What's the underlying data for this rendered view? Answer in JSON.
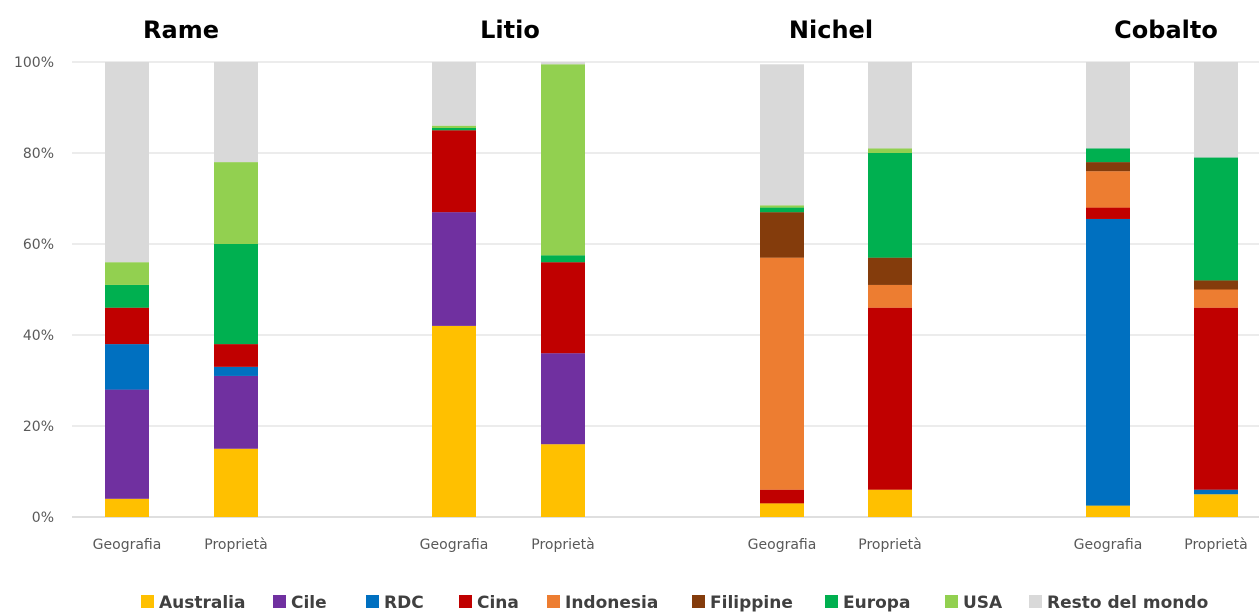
{
  "chart_data": {
    "type": "bar",
    "stacked": true,
    "ylim": [
      0,
      100
    ],
    "yticks": [
      "0%",
      "20%",
      "40%",
      "60%",
      "80%",
      "100%"
    ],
    "grid": true,
    "legend_position": "bottom",
    "series_names": [
      "Australia",
      "Cile",
      "RDC",
      "Cina",
      "Indonesia",
      "Filippine",
      "Europa",
      "USA",
      "Resto del mondo"
    ],
    "colors": {
      "Australia": "#FFC000",
      "Cile": "#7030A0",
      "RDC": "#0070C0",
      "Cina": "#C00000",
      "Indonesia": "#ED7D31",
      "Filippine": "#843C0C",
      "Europa": "#00B050",
      "USA": "#92D050",
      "Resto del mondo": "#D9D9D9"
    },
    "panels": [
      {
        "title": "Rame",
        "categories": [
          "Geografia",
          "Proprietà"
        ],
        "values": {
          "Geografia": [
            4,
            24,
            10,
            8,
            0,
            0,
            5,
            5,
            44
          ],
          "Proprietà": [
            15,
            16,
            2,
            5,
            0,
            0,
            22,
            18,
            22
          ]
        }
      },
      {
        "title": "Litio",
        "categories": [
          "Geografia",
          "Proprietà"
        ],
        "values": {
          "Geografia": [
            42,
            25,
            0,
            18,
            0,
            0,
            0.5,
            0.5,
            14
          ],
          "Proprietà": [
            16,
            20,
            0,
            20,
            0,
            0,
            1.5,
            42,
            0.5
          ]
        }
      },
      {
        "title": "Nichel",
        "categories": [
          "Geografia",
          "Proprietà"
        ],
        "values": {
          "Geografia": [
            3,
            0,
            0,
            3,
            51,
            10,
            1,
            0.5,
            31
          ],
          "Proprietà": [
            6,
            0,
            0,
            40,
            5,
            6,
            23,
            1,
            19
          ]
        }
      },
      {
        "title": "Cobalto",
        "categories": [
          "Geografia",
          "Proprietà"
        ],
        "values": {
          "Geografia": [
            2.5,
            0,
            63,
            2.5,
            8,
            2,
            3,
            0,
            19
          ],
          "Proprietà": [
            5,
            0,
            1,
            40,
            4,
            2,
            27,
            0,
            21
          ]
        }
      }
    ]
  }
}
